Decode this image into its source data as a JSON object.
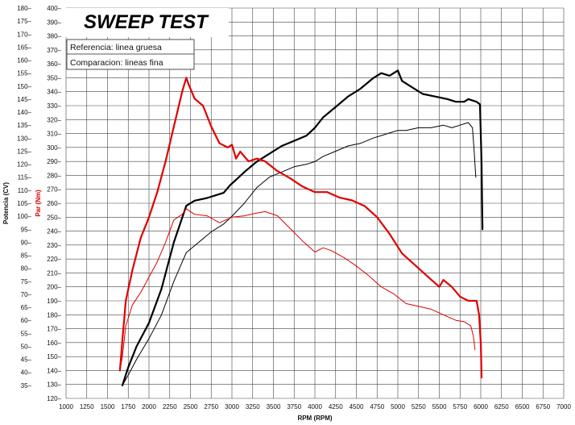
{
  "chart_data": {
    "type": "line",
    "title": "SWEEP TEST",
    "legend": [
      "Referencia: linea gruesa",
      "Comparacion: lineas fina"
    ],
    "xlabel": "RPM (RPM)",
    "ylabel_left": "Potencia (CV)",
    "ylabel_right": "Par (Nm)",
    "xlim": [
      1000,
      7000
    ],
    "x_ticks": [
      1000,
      1250,
      1500,
      1750,
      2000,
      2250,
      2500,
      2750,
      3000,
      3250,
      3500,
      3750,
      4000,
      4250,
      4500,
      4750,
      5000,
      5250,
      5500,
      5750,
      6000,
      6250,
      6500,
      6750,
      7000
    ],
    "ylim_power": [
      30,
      180
    ],
    "power_ticks": [
      35,
      40,
      45,
      50,
      55,
      60,
      65,
      70,
      75,
      80,
      85,
      90,
      95,
      100,
      105,
      110,
      115,
      120,
      125,
      130,
      135,
      140,
      145,
      150,
      155,
      160,
      165,
      170,
      175,
      180
    ],
    "ylim_torque": [
      120,
      400
    ],
    "torque_ticks": [
      120,
      130,
      140,
      150,
      160,
      170,
      180,
      190,
      200,
      210,
      220,
      230,
      240,
      250,
      260,
      270,
      280,
      290,
      300,
      310,
      320,
      330,
      340,
      350,
      360,
      370,
      380,
      390,
      400
    ],
    "grid": true,
    "legend_position": "top-left",
    "colors": {
      "power": "#000000",
      "torque": "#e00000"
    },
    "series": [
      {
        "name": "Referencia",
        "quantity": "power",
        "axis": "power",
        "width": "thick",
        "x": [
          1680,
          1750,
          1850,
          2000,
          2150,
          2300,
          2450,
          2550,
          2700,
          2900,
          2980,
          3050,
          3150,
          3300,
          3450,
          3600,
          3750,
          3900,
          4000,
          4100,
          4250,
          4400,
          4550,
          4700,
          4800,
          4900,
          5000,
          5050,
          5150,
          5300,
          5450,
          5600,
          5700,
          5800,
          5850,
          5950,
          5990,
          6010,
          6020
        ],
        "y": [
          35,
          42,
          50,
          59,
          72,
          90,
          104,
          106,
          107,
          109,
          112,
          114,
          117,
          121,
          124,
          127,
          129,
          131,
          134,
          138,
          142,
          146,
          149,
          153,
          155,
          154,
          156,
          152,
          150,
          147,
          146,
          145,
          144,
          144,
          145,
          144,
          143,
          120,
          95
        ]
      },
      {
        "name": "Comparacion",
        "quantity": "power",
        "axis": "power",
        "width": "thin",
        "x": [
          1680,
          1750,
          1850,
          2000,
          2150,
          2300,
          2450,
          2600,
          2750,
          2900,
          3000,
          3150,
          3300,
          3450,
          3600,
          3750,
          3900,
          4000,
          4100,
          4250,
          4400,
          4550,
          4700,
          4800,
          4900,
          5000,
          5100,
          5250,
          5400,
          5550,
          5650,
          5750,
          5850,
          5900,
          5920,
          5940
        ],
        "y": [
          35,
          39,
          45,
          53,
          62,
          75,
          86,
          90,
          94,
          97,
          100,
          105,
          111,
          115,
          117,
          119,
          120,
          121,
          123,
          125,
          127,
          128,
          130,
          131,
          132,
          133,
          133,
          134,
          134,
          135,
          134,
          135,
          136,
          134,
          125,
          115
        ]
      },
      {
        "name": "Referencia",
        "quantity": "torque",
        "axis": "torque",
        "width": "thick",
        "x": [
          1650,
          1680,
          1720,
          1800,
          1900,
          2000,
          2100,
          2200,
          2300,
          2400,
          2450,
          2480,
          2550,
          2650,
          2750,
          2850,
          2950,
          3000,
          3050,
          3100,
          3200,
          3300,
          3400,
          3550,
          3700,
          3850,
          4000,
          4150,
          4300,
          4450,
          4600,
          4750,
          4900,
          5050,
          5200,
          5350,
          5500,
          5550,
          5650,
          5750,
          5850,
          5950,
          5980,
          6000,
          6010
        ],
        "y": [
          140,
          162,
          190,
          212,
          235,
          250,
          268,
          290,
          315,
          340,
          350,
          345,
          335,
          330,
          315,
          303,
          300,
          302,
          292,
          297,
          290,
          292,
          290,
          283,
          278,
          272,
          268,
          268,
          264,
          262,
          258,
          250,
          238,
          224,
          216,
          208,
          200,
          205,
          200,
          193,
          190,
          190,
          180,
          160,
          135
        ]
      },
      {
        "name": "Comparacion",
        "quantity": "torque",
        "axis": "torque",
        "width": "thin",
        "x": [
          1650,
          1680,
          1720,
          1800,
          1900,
          2000,
          2100,
          2200,
          2300,
          2400,
          2450,
          2550,
          2700,
          2850,
          3000,
          3150,
          3300,
          3400,
          3550,
          3700,
          3850,
          4000,
          4100,
          4200,
          4350,
          4500,
          4650,
          4800,
          4950,
          5100,
          5250,
          5400,
          5550,
          5700,
          5800,
          5880,
          5910,
          5930
        ],
        "y": [
          140,
          150,
          172,
          187,
          196,
          207,
          218,
          232,
          248,
          252,
          256,
          252,
          251,
          246,
          250,
          251,
          253,
          254,
          251,
          242,
          233,
          225,
          228,
          226,
          221,
          215,
          208,
          200,
          195,
          188,
          186,
          184,
          180,
          176,
          175,
          172,
          165,
          155
        ]
      }
    ]
  }
}
